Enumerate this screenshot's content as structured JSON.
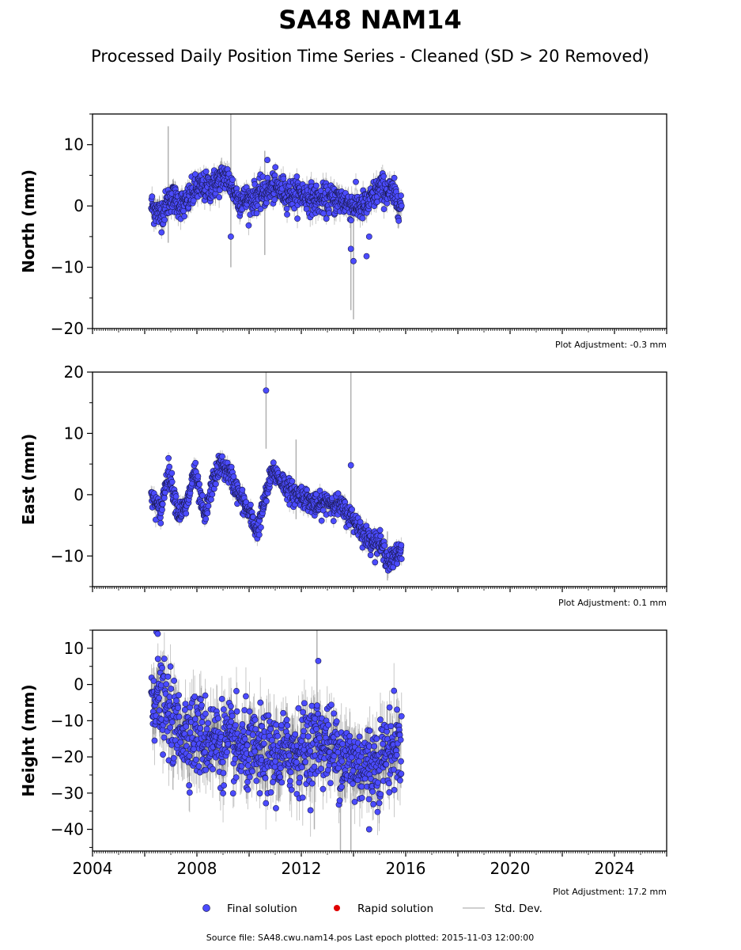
{
  "title": "SA48 NAM14",
  "subtitle": "Processed Daily Position Time Series - Cleaned (SD > 20 Removed)",
  "legend": {
    "final": "Final solution",
    "rapid": "Rapid solution",
    "stddev": "Std. Dev."
  },
  "footer": "Source file: SA48.cwu.nam14.pos  Last epoch plotted: 2015-11-03 12:00:00",
  "colors": {
    "final": "#4b4bff",
    "rapid": "#e00000",
    "stddev": "#b0b0b0"
  },
  "chart_data": [
    {
      "type": "scatter",
      "component": "north",
      "ylabel": "North (mm)",
      "adjustment": "Plot Adjustment: -0.3 mm",
      "xlim": [
        2004,
        2026
      ],
      "ylim": [
        -20,
        15
      ],
      "yticks": [
        -20,
        -10,
        0,
        10
      ],
      "ytick_labels": [
        "−20",
        "−10",
        "0",
        "10"
      ],
      "x_start": 2006.25,
      "x_end": 2015.84,
      "trend": [
        [
          2006.25,
          0
        ],
        [
          2006.6,
          -1.5
        ],
        [
          2007.0,
          1.5
        ],
        [
          2007.5,
          0
        ],
        [
          2008.0,
          3
        ],
        [
          2008.5,
          3
        ],
        [
          2009.1,
          5
        ],
        [
          2009.6,
          1
        ],
        [
          2010.0,
          1
        ],
        [
          2010.5,
          2
        ],
        [
          2011.0,
          3
        ],
        [
          2011.5,
          2
        ],
        [
          2012.0,
          2
        ],
        [
          2012.5,
          1
        ],
        [
          2013.0,
          1
        ],
        [
          2013.5,
          1
        ],
        [
          2014.0,
          0
        ],
        [
          2014.5,
          0
        ],
        [
          2015.0,
          3
        ],
        [
          2015.5,
          2
        ],
        [
          2015.84,
          0
        ]
      ],
      "scatter_sd": 1.2,
      "outliers": [
        [
          2010.7,
          7.5
        ],
        [
          2009.3,
          -5
        ],
        [
          2013.9,
          -7
        ],
        [
          2014.0,
          -9
        ],
        [
          2014.5,
          -8.2
        ],
        [
          2014.6,
          -5
        ]
      ],
      "stddev_spikes": [
        [
          2006.9,
          -6,
          13
        ],
        [
          2009.3,
          -10,
          15
        ],
        [
          2013.9,
          -17,
          2
        ],
        [
          2014.0,
          -18.5,
          1
        ],
        [
          2010.6,
          -8,
          9
        ]
      ],
      "xtick_labels": []
    },
    {
      "type": "scatter",
      "component": "east",
      "ylabel": "East (mm)",
      "adjustment": "Plot Adjustment: 0.1 mm",
      "xlim": [
        2004,
        2026
      ],
      "ylim": [
        -15,
        20
      ],
      "yticks": [
        -10,
        0,
        10,
        20
      ],
      "ytick_labels": [
        "−10",
        "0",
        "10",
        "20"
      ],
      "x_start": 2006.25,
      "x_end": 2015.84,
      "trend": [
        [
          2006.25,
          0
        ],
        [
          2006.6,
          -3
        ],
        [
          2006.9,
          4
        ],
        [
          2007.3,
          -3
        ],
        [
          2007.6,
          -2
        ],
        [
          2007.9,
          4
        ],
        [
          2008.3,
          -4
        ],
        [
          2008.6,
          2
        ],
        [
          2008.9,
          5
        ],
        [
          2009.3,
          3
        ],
        [
          2009.6,
          0
        ],
        [
          2010.0,
          -3
        ],
        [
          2010.3,
          -6
        ],
        [
          2010.6,
          -1
        ],
        [
          2010.9,
          4
        ],
        [
          2011.3,
          2
        ],
        [
          2011.7,
          0
        ],
        [
          2012.0,
          0
        ],
        [
          2012.6,
          -2
        ],
        [
          2013.0,
          -1
        ],
        [
          2013.5,
          -2
        ],
        [
          2014.0,
          -4
        ],
        [
          2014.5,
          -7
        ],
        [
          2015.0,
          -8
        ],
        [
          2015.4,
          -11
        ],
        [
          2015.84,
          -9
        ]
      ],
      "scatter_sd": 0.9,
      "outliers": [
        [
          2010.65,
          17
        ],
        [
          2013.9,
          4.8
        ]
      ],
      "stddev_spikes": [
        [
          2010.65,
          7.5,
          20
        ],
        [
          2013.9,
          -7,
          20
        ],
        [
          2011.8,
          -4,
          9
        ],
        [
          2015.3,
          -14,
          -6
        ]
      ],
      "xtick_labels": []
    },
    {
      "type": "scatter",
      "component": "height",
      "ylabel": "Height (mm)",
      "adjustment": "Plot Adjustment: 17.2 mm",
      "xlim": [
        2004,
        2026
      ],
      "ylim": [
        -46,
        15
      ],
      "yticks": [
        -40,
        -30,
        -20,
        -10,
        0,
        10
      ],
      "ytick_labels": [
        "−40",
        "−30",
        "−20",
        "−10",
        "0",
        "10"
      ],
      "x_start": 2006.25,
      "x_end": 2015.84,
      "trend": [
        [
          2006.25,
          -2
        ],
        [
          2006.7,
          -6
        ],
        [
          2007.2,
          -12
        ],
        [
          2008.0,
          -14
        ],
        [
          2009.0,
          -16
        ],
        [
          2010.0,
          -19
        ],
        [
          2011.0,
          -20
        ],
        [
          2012.0,
          -18
        ],
        [
          2012.7,
          -15
        ],
        [
          2013.3,
          -18
        ],
        [
          2014.0,
          -22
        ],
        [
          2014.8,
          -22
        ],
        [
          2015.4,
          -18
        ],
        [
          2015.84,
          -16
        ]
      ],
      "scatter_sd": 5.5,
      "outliers": [
        [
          2006.45,
          14.5
        ],
        [
          2006.5,
          14
        ],
        [
          2012.65,
          6.5
        ],
        [
          2014.6,
          -40
        ]
      ],
      "stddev_spikes": [
        [
          2012.6,
          -18,
          15
        ],
        [
          2013.5,
          -46,
          -25
        ],
        [
          2013.9,
          -46,
          -30
        ],
        [
          2012.5,
          -40,
          -10
        ]
      ],
      "xticks": [
        2004,
        2008,
        2012,
        2016,
        2020,
        2024
      ],
      "xtick_labels": [
        "2004",
        "2008",
        "2012",
        "2016",
        "2020",
        "2024"
      ]
    }
  ]
}
